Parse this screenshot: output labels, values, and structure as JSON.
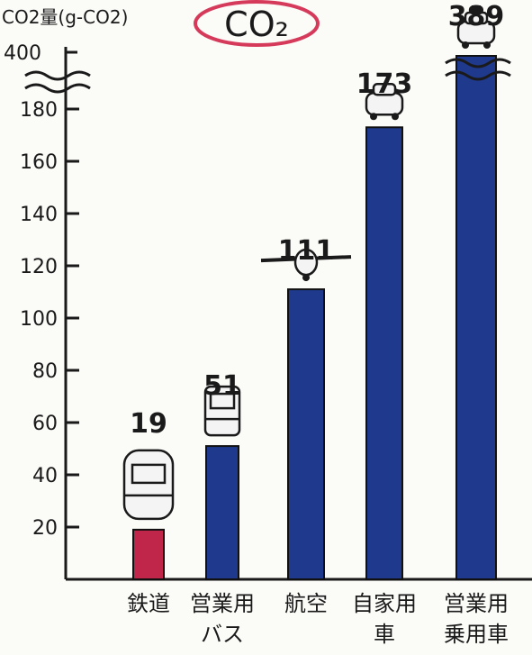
{
  "chart_data": {
    "type": "bar",
    "title": "CO₂",
    "ylabel": "CO2量(g-CO2)",
    "ylim": [
      0,
      200
    ],
    "axis_break": {
      "below": 190,
      "top_tick_label": "400"
    },
    "y_ticks": [
      20,
      40,
      60,
      80,
      100,
      120,
      140,
      160,
      180
    ],
    "grid": false,
    "categories": [
      {
        "line1": "鉄道",
        "line2": ""
      },
      {
        "line1": "営業用",
        "line2": "バス"
      },
      {
        "line1": "航空",
        "line2": ""
      },
      {
        "line1": "自家用",
        "line2": "車"
      },
      {
        "line1": "営業用",
        "line2": "乗用車"
      }
    ],
    "values": [
      19,
      51,
      111,
      173,
      389
    ],
    "data_labels": [
      "19",
      "51",
      "111",
      "173",
      "389"
    ],
    "colors": [
      "#c0254a",
      "#1f3a8c",
      "#1f3a8c",
      "#1f3a8c",
      "#1f3a8c"
    ],
    "icons": [
      "train-icon",
      "bus-icon",
      "airplane-icon",
      "car-icon",
      "taxi-icon"
    ]
  },
  "title_ring_color": "#d63a5a",
  "axis_color": "#1a1a1a"
}
